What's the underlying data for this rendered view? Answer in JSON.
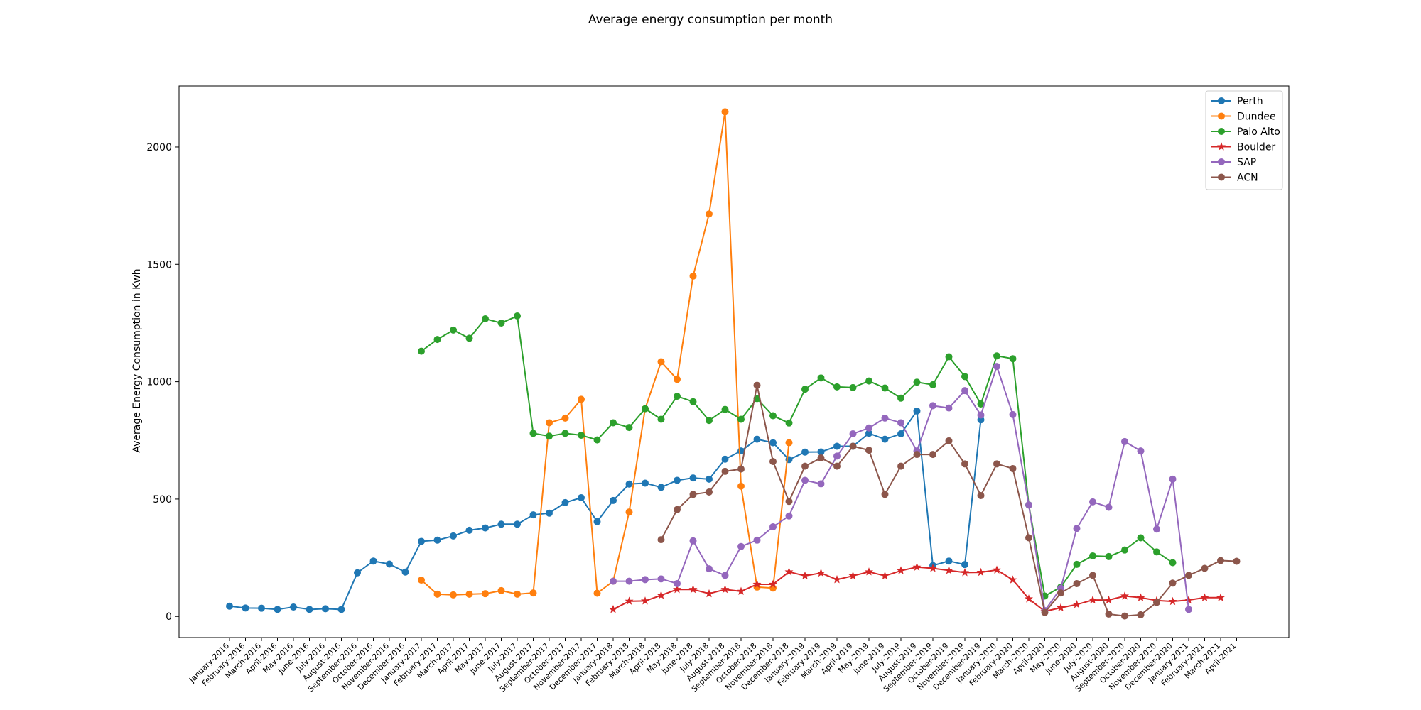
{
  "chart_data": {
    "type": "line",
    "title": "Average energy consumption per month",
    "xlabel": "",
    "ylabel": "Average Energy Consumption in Kwh",
    "ylim": [
      -90,
      2260
    ],
    "yticks": [
      0,
      500,
      1000,
      1500,
      2000
    ],
    "grid": false,
    "legend_position": "top-right",
    "categories": [
      "January-2016",
      "February-2016",
      "March-2016",
      "April-2016",
      "May-2016",
      "June-2016",
      "July-2016",
      "August-2016",
      "September-2016",
      "October-2016",
      "November-2016",
      "December-2016",
      "January-2017",
      "February-2017",
      "March-2017",
      "April-2017",
      "May-2017",
      "June-2017",
      "July-2017",
      "August-2017",
      "September-2017",
      "October-2017",
      "November-2017",
      "December-2017",
      "January-2018",
      "February-2018",
      "March-2018",
      "April-2018",
      "May-2018",
      "June-2018",
      "July-2018",
      "August-2018",
      "September-2018",
      "October-2018",
      "November-2018",
      "December-2018",
      "January-2019",
      "February-2019",
      "March-2019",
      "April-2019",
      "May-2019",
      "June-2019",
      "July-2019",
      "August-2019",
      "September-2019",
      "October-2019",
      "November-2019",
      "December-2019",
      "January-2020",
      "February-2020",
      "March-2020",
      "April-2020",
      "May-2020",
      "June-2020",
      "July-2020",
      "August-2020",
      "September-2020",
      "October-2020",
      "November-2020",
      "December-2020",
      "January-2021",
      "February-2021",
      "March-2021",
      "April-2021"
    ],
    "series": [
      {
        "name": "Perth",
        "color": "#1f77b4",
        "marker": "circle",
        "values": [
          44,
          36,
          35,
          30,
          40,
          30,
          33,
          30,
          186,
          236,
          223,
          189,
          320,
          325,
          343,
          367,
          377,
          393,
          393,
          433,
          440,
          485,
          506,
          404,
          494,
          564,
          568,
          550,
          580,
          590,
          585,
          670,
          705,
          755,
          740,
          668,
          700,
          701,
          725,
          725,
          780,
          755,
          778,
          875,
          217,
          236,
          221,
          838,
          null,
          null,
          null,
          null,
          null,
          null,
          null,
          null,
          null,
          null,
          null,
          null,
          null,
          null,
          null,
          null
        ]
      },
      {
        "name": "Dundee",
        "color": "#ff7f0e",
        "marker": "circle",
        "values": [
          null,
          null,
          null,
          null,
          null,
          null,
          null,
          null,
          null,
          null,
          null,
          null,
          155,
          95,
          92,
          95,
          97,
          110,
          95,
          100,
          825,
          845,
          925,
          99,
          150,
          445,
          885,
          1085,
          1010,
          1450,
          1715,
          2150,
          555,
          125,
          121,
          740,
          null,
          null,
          null,
          null,
          null,
          null,
          null,
          null,
          null,
          null,
          null,
          null,
          null,
          null,
          null,
          null,
          null,
          null,
          null,
          null,
          null,
          null,
          null,
          null,
          null,
          null,
          null,
          null
        ]
      },
      {
        "name": "Palo Alto",
        "color": "#2ca02c",
        "marker": "circle",
        "values": [
          null,
          null,
          null,
          null,
          null,
          null,
          null,
          null,
          null,
          null,
          null,
          null,
          1130,
          1180,
          1220,
          1185,
          1268,
          1250,
          1280,
          780,
          768,
          780,
          772,
          752,
          825,
          805,
          885,
          840,
          938,
          915,
          835,
          882,
          840,
          928,
          855,
          824,
          968,
          1016,
          978,
          975,
          1003,
          973,
          930,
          998,
          987,
          1106,
          1022,
          905,
          1110,
          1098,
          475,
          87,
          125,
          222,
          258,
          255,
          283,
          335,
          275,
          229,
          null,
          null,
          null,
          null
        ]
      },
      {
        "name": "Boulder",
        "color": "#d62728",
        "marker": "star",
        "values": [
          null,
          null,
          null,
          null,
          null,
          null,
          null,
          null,
          null,
          null,
          null,
          null,
          null,
          null,
          null,
          null,
          null,
          null,
          null,
          null,
          null,
          null,
          null,
          null,
          30,
          65,
          66,
          90,
          115,
          115,
          97,
          115,
          107,
          137,
          137,
          190,
          173,
          185,
          157,
          173,
          190,
          173,
          195,
          210,
          205,
          196,
          187,
          188,
          198,
          156,
          75,
          22,
          37,
          51,
          70,
          70,
          87,
          80,
          68,
          64,
          70,
          80,
          80,
          null
        ]
      },
      {
        "name": "SAP",
        "color": "#9467bd",
        "marker": "circle",
        "values": [
          null,
          null,
          null,
          null,
          null,
          null,
          null,
          null,
          null,
          null,
          null,
          null,
          null,
          null,
          null,
          null,
          null,
          null,
          null,
          null,
          null,
          null,
          null,
          null,
          150,
          150,
          157,
          160,
          140,
          322,
          203,
          175,
          298,
          325,
          382,
          428,
          580,
          565,
          683,
          778,
          803,
          845,
          825,
          705,
          898,
          888,
          962,
          858,
          1065,
          860,
          475,
          25,
          120,
          375,
          488,
          465,
          745,
          705,
          372,
          585,
          30,
          null,
          null,
          null
        ]
      },
      {
        "name": "ACN",
        "color": "#8c564b",
        "marker": "circle",
        "values": [
          null,
          null,
          null,
          null,
          null,
          null,
          null,
          null,
          null,
          null,
          null,
          null,
          null,
          null,
          null,
          null,
          null,
          null,
          null,
          null,
          null,
          null,
          null,
          null,
          null,
          null,
          null,
          327,
          455,
          520,
          530,
          618,
          628,
          985,
          660,
          490,
          640,
          675,
          640,
          725,
          708,
          520,
          640,
          690,
          690,
          748,
          650,
          515,
          650,
          630,
          335,
          17,
          100,
          140,
          175,
          10,
          2,
          7,
          60,
          142,
          175,
          205,
          238,
          235
        ]
      }
    ]
  }
}
